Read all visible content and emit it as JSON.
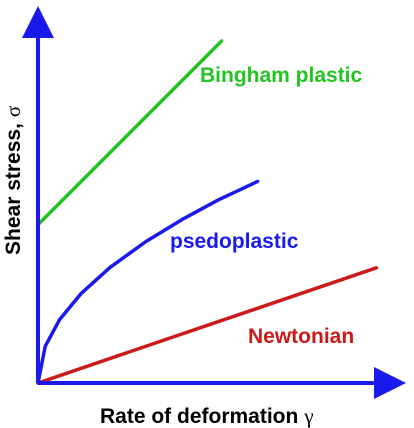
{
  "chart_data": {
    "type": "line",
    "title": "",
    "xlabel": "Rate of deformation",
    "xlabel_symbol": "γ",
    "ylabel": "Shear stress,",
    "ylabel_symbol": "σ",
    "axis_color": "#1a1aee",
    "grid": false,
    "ticks": false,
    "xlim": [
      0,
      10
    ],
    "ylim": [
      0,
      10
    ],
    "series": [
      {
        "name": "Bingham plastic",
        "color": "#22c422",
        "x": [
          0,
          5.1
        ],
        "y": [
          4.4,
          9.5
        ]
      },
      {
        "name": "psedoplastic",
        "color": "#1a1aee",
        "x": [
          0,
          0.2,
          0.6,
          1.2,
          2,
          3,
          4,
          5,
          6.1
        ],
        "y": [
          0,
          1.02,
          1.76,
          2.49,
          3.21,
          3.93,
          4.54,
          5.08,
          5.6
        ]
      },
      {
        "name": "Newtonian",
        "color": "#cc1a1a",
        "x": [
          0,
          9.4
        ],
        "y": [
          0,
          3.2
        ]
      }
    ]
  }
}
